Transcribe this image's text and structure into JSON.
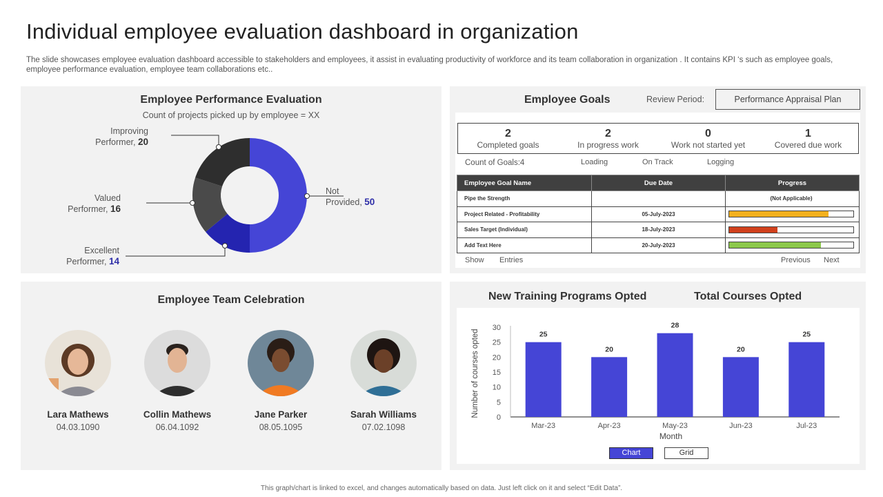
{
  "page": {
    "title": "Individual employee evaluation dashboard in organization",
    "subtitle": "The slide showcases employee evaluation dashboard accessible to stakeholders and employees, it assist in evaluating productivity of workforce and its team collaboration in organization . It contains KPI ‘s such as employee goals, employee performance evaluation, employee team collaborations etc..",
    "footer": "This graph/chart is linked to excel, and changes automatically based on data. Just left click on it and select “Edit Data”."
  },
  "performance": {
    "title": "Employee Performance Evaluation",
    "subtitle": "Count of projects picked up by employee = XX",
    "segments": [
      {
        "label": "Not Provided,",
        "value": 50,
        "color": "#4545d6"
      },
      {
        "label": "Excellent Performer,",
        "value": 14,
        "color": "#2424b0"
      },
      {
        "label": "Valued Performer,",
        "value": 16,
        "color": "#4a4a4a"
      },
      {
        "label": "Improving Performer,",
        "value": 20,
        "color": "#2e2e2e"
      }
    ],
    "labels": {
      "improving_1": "Improving",
      "improving_2": "Performer,",
      "improving_val": "20",
      "valued_1": "Valued",
      "valued_2": "Performer,",
      "valued_val": "16",
      "excellent_1": "Excellent",
      "excellent_2": "Performer,",
      "excellent_val": "14",
      "notprov_1": "Not",
      "notprov_2": "Provided,",
      "notprov_val": "50"
    }
  },
  "goals": {
    "title": "Employee Goals",
    "review_label": "Review  Period:",
    "plan_label": "Performance  Appraisal Plan",
    "kpis": [
      {
        "num": "2",
        "label": "Completed goals"
      },
      {
        "num": "2",
        "label": "In progress work"
      },
      {
        "num": "0",
        "label": "Work not started yet"
      },
      {
        "num": "1",
        "label": "Covered due work"
      }
    ],
    "count_label": "Count of Goals:4",
    "status": {
      "loading": "Loading",
      "on_track": "On Track",
      "logging": "Logging"
    },
    "table": {
      "headers": [
        "Employee Goal Name",
        "Due Date",
        "Progress"
      ],
      "rows": [
        {
          "name": "Pipe the Strength",
          "date": "",
          "progress_text": "(Not Applicable)",
          "progress": null,
          "color": ""
        },
        {
          "name": "Project Related - Profitability",
          "date": "05-July-2023",
          "progress_text": "",
          "progress": 0.8,
          "color": "#f2b01e"
        },
        {
          "name": "Sales Target (Individual)",
          "date": "18-July-2023",
          "progress_text": "",
          "progress": 0.39,
          "color": "#d0401c"
        },
        {
          "name": "Add Text Here",
          "date": "20-July-2023",
          "progress_text": "",
          "progress": 0.74,
          "color": "#8cc84b"
        }
      ]
    },
    "show_label": "Show",
    "entries_label": "Entries",
    "previous_label": "Previous",
    "next_label": "Next"
  },
  "team": {
    "title": "Employee Team Celebration",
    "members": [
      {
        "name": "Lara Mathews",
        "date": "04.03.1090"
      },
      {
        "name": "Collin Mathews",
        "date": "06.04.1092"
      },
      {
        "name": "Jane Parker",
        "date": "08.05.1095"
      },
      {
        "name": "Sarah Williams",
        "date": "07.02.1098"
      }
    ]
  },
  "training": {
    "title_left": "New Training Programs Opted",
    "title_right": "Total Courses Opted",
    "chart_btn": "Chart",
    "grid_btn": "Grid"
  },
  "chart_data": {
    "type": "bar",
    "title": "New Training Programs Opted",
    "categories": [
      "Mar-23",
      "Apr-23",
      "May-23",
      "Jun-23",
      "Jul-23"
    ],
    "values": [
      25,
      20,
      28,
      20,
      25
    ],
    "xlabel": "Month",
    "ylabel": "Number of courses opted",
    "ylim": [
      0,
      30
    ],
    "yticks": [
      0,
      5,
      10,
      15,
      20,
      25,
      30
    ],
    "bar_color": "#4545d6"
  }
}
